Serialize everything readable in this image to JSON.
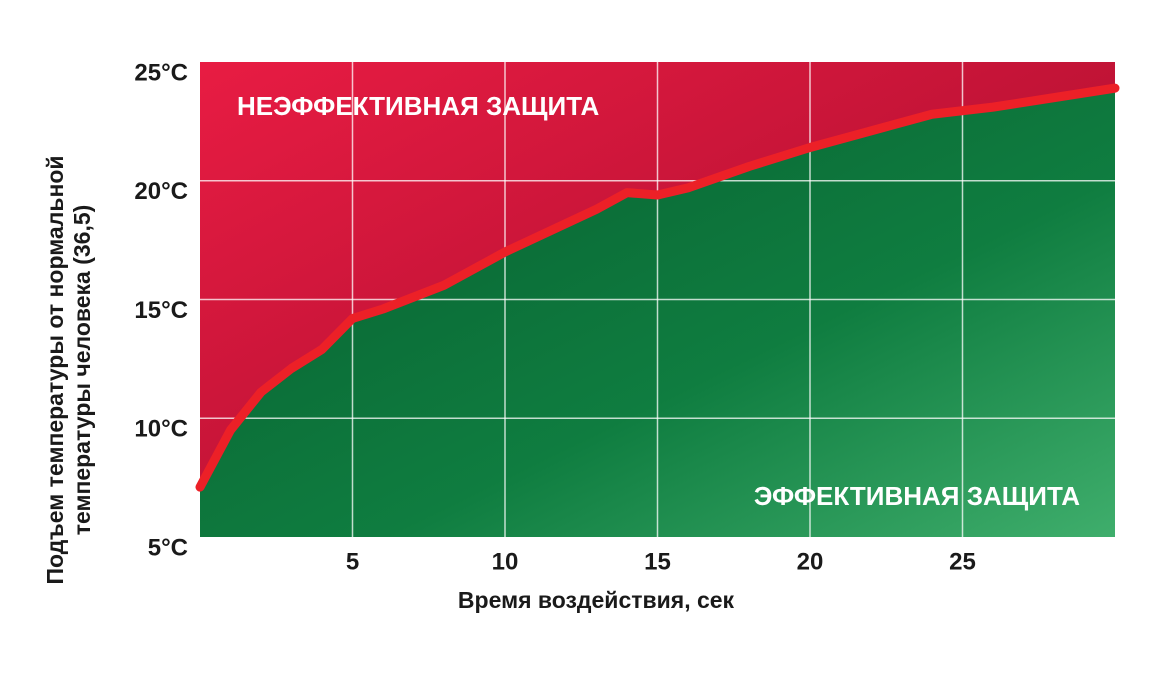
{
  "chart_data": {
    "type": "area",
    "xlabel": "Время воздействия, сек",
    "ylabel": [
      "Подъем температуры от нормальной",
      "температуры человека (36,5)"
    ],
    "annotations": [
      "НЕЭФФЕКТИВНАЯ ЗАЩИТА",
      "ЭФФЕКТИВНАЯ ЗАЩИТА"
    ],
    "x": [
      0,
      1,
      2,
      3,
      4,
      5,
      6,
      7,
      8,
      10,
      12,
      13,
      14,
      15,
      16,
      18,
      20,
      22,
      24,
      26,
      28,
      30
    ],
    "series": [
      {
        "color": "#ec2027",
        "values": [
          7.1,
          9.5,
          11.1,
          12.1,
          12.9,
          14.2,
          14.6,
          15.1,
          15.6,
          17.0,
          18.2,
          18.8,
          19.5,
          19.4,
          19.7,
          20.6,
          21.4,
          22.1,
          22.8,
          23.1,
          23.5,
          23.9
        ]
      }
    ],
    "xlim": [
      0,
      30
    ],
    "ylim": [
      5,
      25
    ],
    "xticks": [
      5,
      10,
      15,
      20,
      25
    ],
    "yticks": [
      {
        "value": 5,
        "label": "5°C"
      },
      {
        "value": 10,
        "label": "10°C"
      },
      {
        "value": 15,
        "label": "15°C"
      },
      {
        "value": 20,
        "label": "20°C"
      },
      {
        "value": 25,
        "label": "25°C"
      }
    ],
    "grid": true
  }
}
